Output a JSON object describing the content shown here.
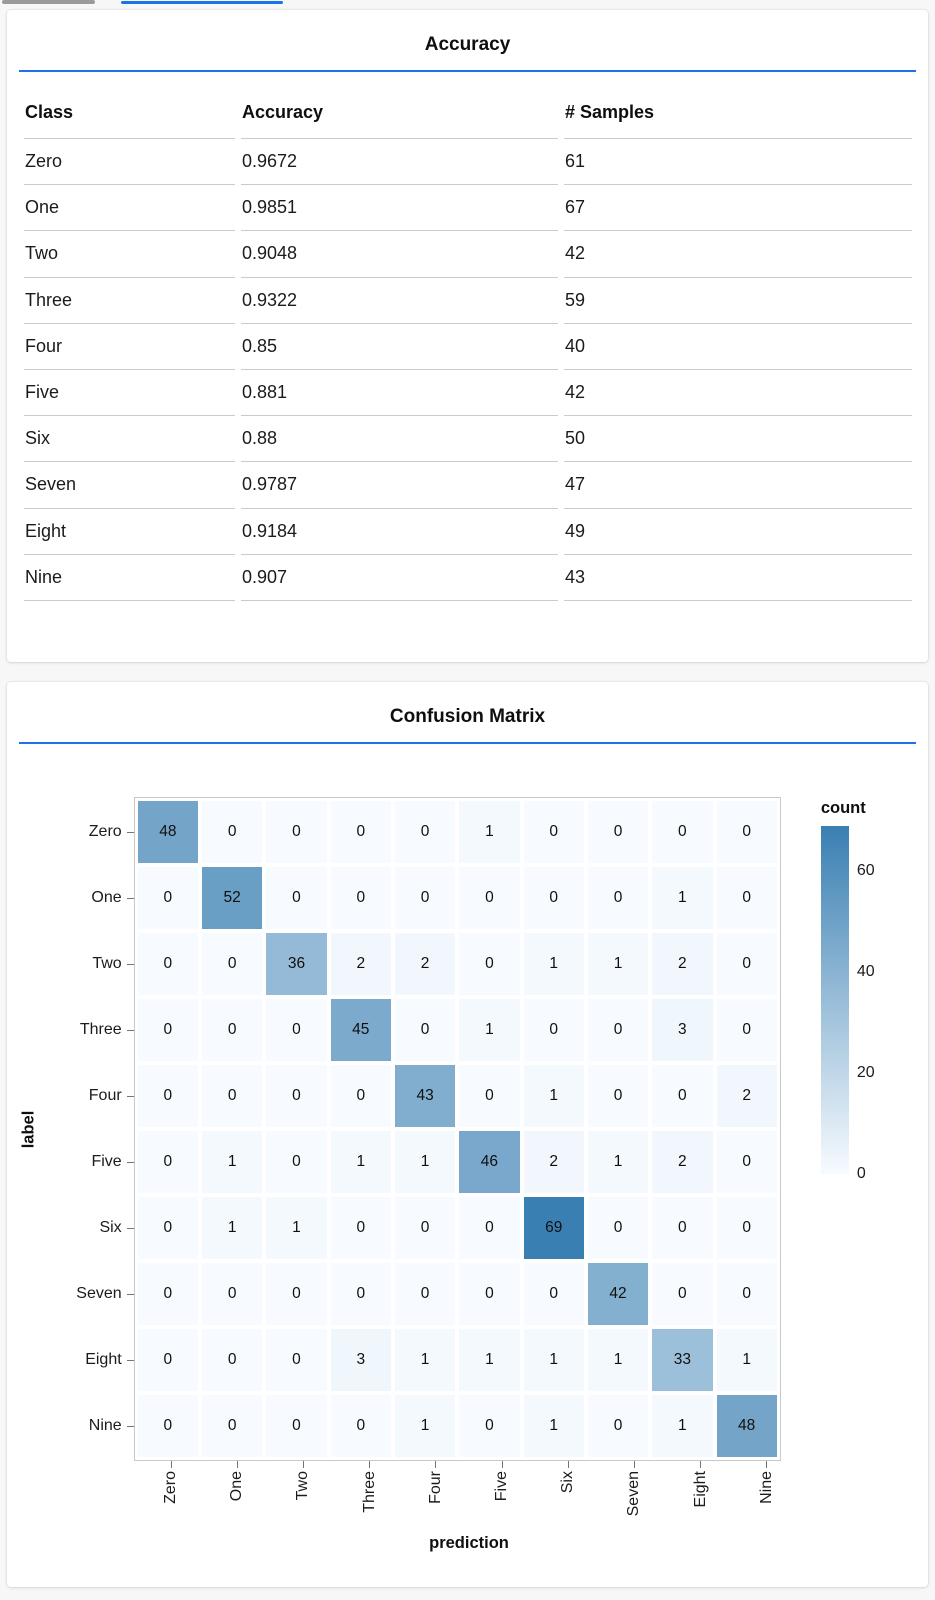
{
  "chrome": {
    "inactive_tab_color": "#9b9b9b",
    "active_tab_color": "#1a73e8",
    "accent_color": "#1a73e8"
  },
  "chart_data": [
    {
      "type": "table",
      "title": "Accuracy",
      "columns": [
        "Class",
        "Accuracy",
        "# Samples"
      ],
      "rows": [
        [
          "Zero",
          "0.9672",
          "61"
        ],
        [
          "One",
          "0.9851",
          "67"
        ],
        [
          "Two",
          "0.9048",
          "42"
        ],
        [
          "Three",
          "0.9322",
          "59"
        ],
        [
          "Four",
          "0.85",
          "40"
        ],
        [
          "Five",
          "0.881",
          "42"
        ],
        [
          "Six",
          "0.88",
          "50"
        ],
        [
          "Seven",
          "0.9787",
          "47"
        ],
        [
          "Eight",
          "0.9184",
          "49"
        ],
        [
          "Nine",
          "0.907",
          "43"
        ]
      ]
    },
    {
      "type": "heatmap",
      "title": "Confusion Matrix",
      "xlabel": "prediction",
      "ylabel": "label",
      "x_categories": [
        "Zero",
        "One",
        "Two",
        "Three",
        "Four",
        "Five",
        "Six",
        "Seven",
        "Eight",
        "Nine"
      ],
      "y_categories": [
        "Zero",
        "One",
        "Two",
        "Three",
        "Four",
        "Five",
        "Six",
        "Seven",
        "Eight",
        "Nine"
      ],
      "matrix": [
        [
          48,
          0,
          0,
          0,
          0,
          1,
          0,
          0,
          0,
          0
        ],
        [
          0,
          52,
          0,
          0,
          0,
          0,
          0,
          0,
          1,
          0
        ],
        [
          0,
          0,
          36,
          2,
          2,
          0,
          1,
          1,
          2,
          0
        ],
        [
          0,
          0,
          0,
          45,
          0,
          1,
          0,
          0,
          3,
          0
        ],
        [
          0,
          0,
          0,
          0,
          43,
          0,
          1,
          0,
          0,
          2
        ],
        [
          0,
          1,
          0,
          1,
          1,
          46,
          2,
          1,
          2,
          0
        ],
        [
          0,
          1,
          1,
          0,
          0,
          0,
          69,
          0,
          0,
          0
        ],
        [
          0,
          0,
          0,
          0,
          0,
          0,
          0,
          42,
          0,
          0
        ],
        [
          0,
          0,
          0,
          3,
          1,
          1,
          1,
          1,
          33,
          1
        ],
        [
          0,
          0,
          0,
          0,
          1,
          0,
          1,
          0,
          1,
          48
        ]
      ],
      "legend": {
        "title": "count",
        "ticks": [
          60,
          40,
          20,
          0
        ],
        "domain": [
          0,
          69
        ],
        "min_color": "#f7fbff",
        "max_color": "#3a7fb2"
      },
      "grid": false,
      "legend_position": "right"
    }
  ]
}
